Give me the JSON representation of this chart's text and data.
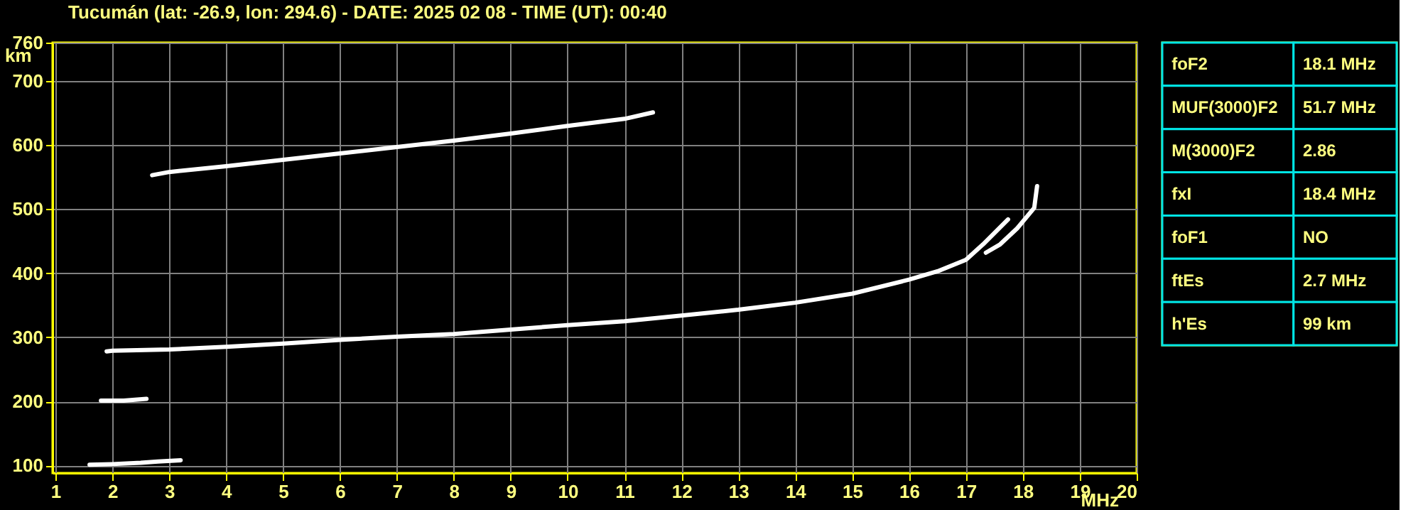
{
  "chart_data": [
    {
      "type": "line",
      "title": "Tucumán (lat: -26.9, lon: 294.6) - DATE: 2025 02 08 - TIME (UT): 00:40",
      "xlabel": "MHz",
      "ylabel": "km",
      "xlim": [
        0.95,
        20
      ],
      "ylim": [
        88,
        760
      ],
      "xticks": [
        1,
        2,
        3,
        4,
        5,
        6,
        7,
        8,
        9,
        10,
        11,
        12,
        13,
        14,
        15,
        16,
        17,
        18,
        19,
        20
      ],
      "yticks": [
        100,
        200,
        300,
        400,
        500,
        600,
        700,
        760
      ],
      "grid": true,
      "marker": "none",
      "line_style": "solid",
      "series": [
        {
          "color": "#ffffff",
          "x": [
            1.6,
            2.0,
            2.5,
            2.8,
            3.2
          ],
          "values": [
            101,
            102,
            104,
            106,
            108
          ]
        },
        {
          "color": "#ffffff",
          "x": [
            1.8,
            2.2,
            2.6
          ],
          "values": [
            201,
            201,
            204
          ]
        },
        {
          "color": "#ffffff",
          "x": [
            1.9,
            2,
            3,
            4,
            5,
            6,
            7,
            8,
            9,
            10,
            11,
            12,
            13,
            14,
            15,
            16,
            16.5,
            17,
            17.3,
            17.74
          ],
          "values": [
            278,
            279,
            281,
            285,
            290,
            296,
            301,
            305,
            312,
            319,
            325,
            334,
            343,
            354,
            368,
            390,
            403,
            421,
            445,
            484
          ]
        },
        {
          "color": "#ffffff",
          "x": [
            17.35,
            17.6,
            17.9,
            18.2,
            18.25
          ],
          "values": [
            432,
            445,
            470,
            502,
            536
          ]
        },
        {
          "color": "#ffffff",
          "x": [
            2.7,
            3,
            4,
            5,
            6,
            7,
            8,
            9,
            10,
            11,
            11.5
          ],
          "values": [
            553,
            558,
            567,
            577,
            587,
            597,
            607,
            618,
            630,
            641,
            651
          ]
        }
      ]
    },
    {
      "type": "other",
      "annotations": [
        "foF2",
        "18.1 MHz",
        "MUF(3000)F2",
        "51.7 MHz",
        "M(3000)F2",
        "2.86",
        "fxI",
        "18.4 MHz",
        "foF1",
        "NO",
        "ftEs",
        "2.7 MHz",
        "h'Es",
        "99 km"
      ]
    }
  ]
}
